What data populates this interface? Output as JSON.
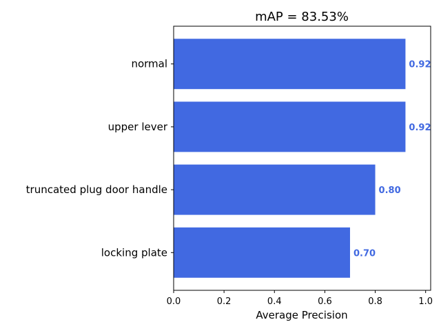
{
  "chart_data": {
    "type": "bar",
    "orientation": "horizontal",
    "title": "mAP = 83.53%",
    "xlabel": "Average Precision",
    "ylabel": "",
    "categories": [
      "normal",
      "upper lever",
      "truncated plug door handle",
      "locking plate"
    ],
    "values": [
      0.92,
      0.92,
      0.8,
      0.7
    ],
    "value_labels": [
      "0.92",
      "0.92",
      "0.80",
      "0.70"
    ],
    "xlim": [
      0,
      1.02
    ],
    "xticks": [
      "0.0",
      "0.2",
      "0.4",
      "0.6",
      "0.8",
      "1.0"
    ],
    "grid": false,
    "legend": "none",
    "colors": {
      "bar": "#4169e1",
      "value_label": "#4169e1"
    }
  }
}
